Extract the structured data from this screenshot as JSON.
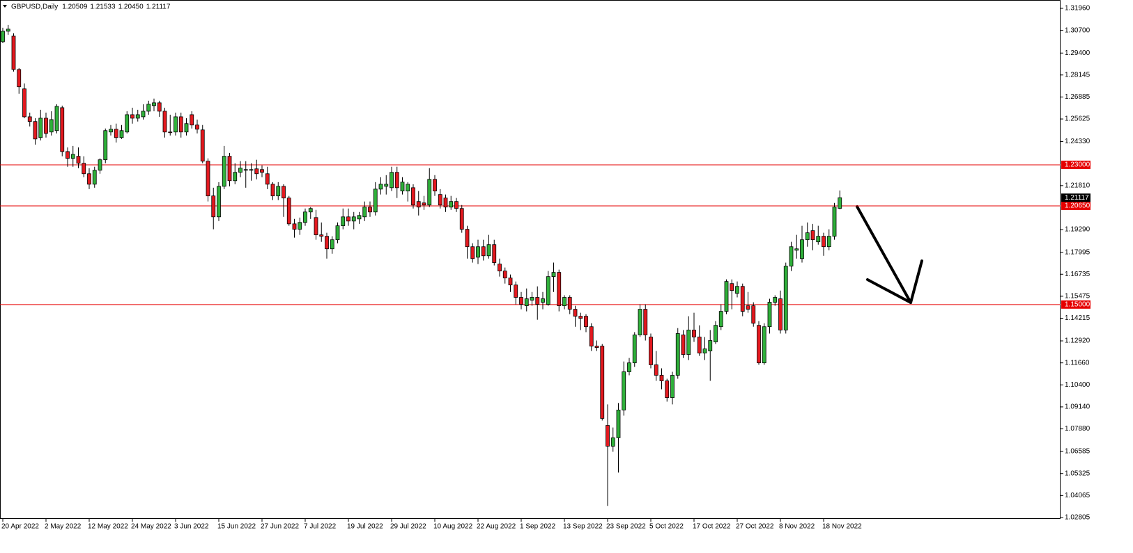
{
  "chart_data": {
    "type": "candlestick",
    "title": "GBPUSD,Daily",
    "header_values": [
      "1.20509",
      "1.21533",
      "1.20450",
      "1.21117"
    ],
    "categories": [
      "20 Apr 2022",
      null,
      null,
      null,
      null,
      null,
      null,
      null,
      "2 May 2022",
      null,
      null,
      null,
      null,
      null,
      null,
      null,
      "12 May 2022",
      null,
      null,
      null,
      null,
      null,
      null,
      null,
      "24 May 2022",
      null,
      null,
      null,
      null,
      null,
      null,
      null,
      "3 Jun 2022",
      null,
      null,
      null,
      null,
      null,
      null,
      null,
      "15 Jun 2022",
      null,
      null,
      null,
      null,
      null,
      null,
      null,
      "27 Jun 2022",
      null,
      null,
      null,
      null,
      null,
      null,
      null,
      "7 Jul 2022",
      null,
      null,
      null,
      null,
      null,
      null,
      null,
      "19 Jul 2022",
      null,
      null,
      null,
      null,
      null,
      null,
      null,
      "29 Jul 2022",
      null,
      null,
      null,
      null,
      null,
      null,
      null,
      "10 Aug 2022",
      null,
      null,
      null,
      null,
      null,
      null,
      null,
      "22 Aug 2022",
      null,
      null,
      null,
      null,
      null,
      null,
      null,
      "1 Sep 2022",
      null,
      null,
      null,
      null,
      null,
      null,
      null,
      "13 Sep 2022",
      null,
      null,
      null,
      null,
      null,
      null,
      null,
      "23 Sep 2022",
      null,
      null,
      null,
      null,
      null,
      null,
      null,
      "5 Oct 2022",
      null,
      null,
      null,
      null,
      null,
      null,
      null,
      "17 Oct 2022",
      null,
      null,
      null,
      null,
      null,
      null,
      null,
      "27 Oct 2022",
      null,
      null,
      null,
      null,
      null,
      null,
      null,
      "8 Nov 2022",
      null,
      null,
      null,
      null,
      null,
      null,
      null,
      "18 Nov 2022",
      null,
      null,
      null
    ],
    "open": [
      1.3005,
      1.3065,
      1.3037,
      1.2846,
      1.2735,
      1.2575,
      1.2548,
      1.2456,
      1.2567,
      1.2488,
      1.2496,
      1.2627,
      1.2376,
      1.2337,
      1.2349,
      1.2309,
      1.2249,
      1.2189,
      1.2269,
      1.2329,
      1.2488,
      1.2504,
      1.2456,
      1.2488,
      1.2587,
      1.2567,
      1.2575,
      1.2607,
      1.2639,
      1.2655,
      1.2607,
      1.2488,
      1.2488,
      1.2575,
      1.2488,
      1.2587,
      1.2528,
      1.25,
      1.2321,
      1.2122,
      1.2002,
      1.2177,
      1.2349,
      1.2209,
      1.2257,
      1.2269,
      1.2269,
      1.2277,
      1.2273,
      1.2249,
      1.2189,
      1.2122,
      1.2177,
      1.211,
      1.1962,
      1.1931,
      1.197,
      1.203,
      1.1998,
      1.1899,
      1.1891,
      1.1819,
      1.1871,
      1.1951,
      1.2002,
      1.1978,
      1.199,
      1.2002,
      1.2058,
      1.203,
      1.2161,
      1.2177,
      1.2169,
      1.2257,
      1.215,
      1.215,
      1.2169,
      1.209,
      1.2082,
      1.207,
      1.2217,
      1.213,
      1.211,
      1.2058,
      1.209,
      1.205,
      1.1931,
      1.1831,
      1.1771,
      1.1831,
      1.1779,
      1.1843,
      1.1732,
      1.1692,
      1.1652,
      1.1612,
      1.1541,
      1.1493,
      1.1525,
      1.1541,
      1.1513,
      1.1501,
      1.166,
      1.1684,
      1.1493,
      1.1541,
      1.1473,
      1.1433,
      1.1433,
      1.1373,
      1.1262,
      1.1262,
      1.0808,
      1.0689,
      1.0737,
      1.0896,
      1.1115,
      1.1166,
      1.1326,
      1.1473,
      1.1314,
      1.1155,
      1.1095,
      1.1063,
      1.0967,
      1.1095,
      1.1326,
      1.1214,
      1.1354,
      1.1314,
      1.1222,
      1.1234,
      1.1286,
      1.1373,
      1.1461,
      1.162,
      1.1564,
      1.1604,
      1.1493,
      1.1493,
      1.1381,
      1.1166,
      1.1373,
      1.1513,
      1.1533,
      1.1354,
      1.172,
      1.1811,
      1.1763,
      1.1871,
      1.1923,
      1.1859,
      1.1891,
      1.1831,
      1.1891,
      1.20509
    ],
    "high": [
      1.3085,
      1.3101,
      1.3053,
      1.2854,
      1.2766,
      1.2599,
      1.2567,
      1.2615,
      1.2599,
      1.2607,
      1.2647,
      1.2639,
      1.24,
      1.2408,
      1.24,
      1.2349,
      1.2281,
      1.2289,
      1.2337,
      1.2508,
      1.2528,
      1.2536,
      1.2528,
      1.2607,
      1.2627,
      1.2615,
      1.2647,
      1.2667,
      1.2679,
      1.2667,
      1.2627,
      1.2587,
      1.2599,
      1.2599,
      1.2567,
      1.2607,
      1.2559,
      1.2528,
      1.2337,
      1.2169,
      1.2201,
      1.2408,
      1.2368,
      1.2309,
      1.2321,
      1.2321,
      1.2309,
      1.2329,
      1.2297,
      1.2289,
      1.2201,
      1.2201,
      1.2189,
      1.2122,
      1.199,
      1.1998,
      1.205,
      1.2058,
      1.2042,
      1.197,
      1.1911,
      1.1891,
      1.197,
      1.205,
      1.205,
      1.203,
      1.203,
      1.209,
      1.209,
      1.2201,
      1.2229,
      1.2241,
      1.2289,
      1.2289,
      1.2229,
      1.2201,
      1.2189,
      1.215,
      1.2122,
      1.2281,
      1.2241,
      1.2161,
      1.213,
      1.2122,
      1.211,
      1.207,
      1.1951,
      1.1851,
      1.1871,
      1.1871,
      1.1899,
      1.1871,
      1.1763,
      1.1712,
      1.1672,
      1.1632,
      1.1572,
      1.1592,
      1.1572,
      1.1604,
      1.1572,
      1.1692,
      1.174,
      1.17,
      1.1553,
      1.1553,
      1.1493,
      1.1453,
      1.1445,
      1.1393,
      1.1294,
      1.1274,
      1.0928,
      1.0796,
      1.0936,
      1.1174,
      1.1194,
      1.1342,
      1.1501,
      1.1501,
      1.1334,
      1.1234,
      1.1135,
      1.1075,
      1.1115,
      1.1365,
      1.1354,
      1.1433,
      1.1453,
      1.1381,
      1.1314,
      1.1354,
      1.1405,
      1.1501,
      1.1644,
      1.1644,
      1.1632,
      1.162,
      1.1572,
      1.1513,
      1.1405,
      1.1393,
      1.1533,
      1.1553,
      1.158,
      1.174,
      1.1859,
      1.1899,
      1.1951,
      1.197,
      1.1962,
      1.1951,
      1.1911,
      1.1931,
      1.2082,
      1.21533
    ],
    "low": [
      1.2997,
      1.3045,
      1.2834,
      1.2707,
      1.2567,
      1.252,
      1.2416,
      1.244,
      1.2456,
      1.2468,
      1.248,
      1.2349,
      1.2289,
      1.2289,
      1.2281,
      1.2229,
      1.2161,
      1.2169,
      1.2249,
      1.2309,
      1.2468,
      1.2428,
      1.2448,
      1.248,
      1.2536,
      1.2548,
      1.2559,
      1.2587,
      1.2607,
      1.2575,
      1.2456,
      1.2468,
      1.2468,
      1.2456,
      1.2468,
      1.2508,
      1.248,
      1.2309,
      1.209,
      1.1931,
      1.1978,
      1.2161,
      1.2177,
      1.2189,
      1.2229,
      1.2169,
      1.2209,
      1.2217,
      1.2229,
      1.2161,
      1.2098,
      1.2098,
      1.2002,
      1.1951,
      1.1883,
      1.1899,
      1.1951,
      1.199,
      1.1871,
      1.1859,
      1.1763,
      1.1791,
      1.1851,
      1.1931,
      1.1951,
      1.1931,
      1.1962,
      1.1978,
      1.2002,
      1.201,
      1.213,
      1.213,
      1.215,
      1.211,
      1.213,
      1.209,
      1.205,
      1.201,
      1.2042,
      1.2058,
      1.2122,
      1.205,
      1.203,
      1.2042,
      1.203,
      1.1911,
      1.1763,
      1.174,
      1.1732,
      1.1752,
      1.1763,
      1.1724,
      1.166,
      1.162,
      1.1572,
      1.1501,
      1.1473,
      1.1461,
      1.1493,
      1.1413,
      1.1473,
      1.1493,
      1.1572,
      1.1461,
      1.1473,
      1.1445,
      1.1373,
      1.1354,
      1.1342,
      1.1234,
      1.1234,
      1.0836,
      1.0347,
      1.0657,
      1.0538,
      1.0864,
      1.1095,
      1.1143,
      1.1314,
      1.1294,
      1.1135,
      1.1063,
      1.1015,
      1.0944,
      1.0928,
      1.1075,
      1.1194,
      1.1182,
      1.1286,
      1.1206,
      1.1182,
      1.1063,
      1.1274,
      1.1354,
      1.1445,
      1.1473,
      1.1541,
      1.1433,
      1.1453,
      1.1373,
      1.1155,
      1.1155,
      1.1334,
      1.1493,
      1.1334,
      1.1334,
      1.1692,
      1.1763,
      1.174,
      1.1831,
      1.1811,
      1.1843,
      1.1779,
      1.1811,
      1.1871,
      1.2045
    ],
    "close": [
      1.3065,
      1.3077,
      1.2846,
      1.2747,
      1.2575,
      1.2548,
      1.2448,
      1.2567,
      1.248,
      1.2559,
      1.2635,
      1.2376,
      1.2337,
      1.236,
      1.2309,
      1.2249,
      1.2189,
      1.2269,
      1.2329,
      1.2496,
      1.2504,
      1.2456,
      1.2496,
      1.2587,
      1.2567,
      1.2587,
      1.2607,
      1.2647,
      1.2655,
      1.2607,
      1.2488,
      1.2484,
      1.2575,
      1.2488,
      1.2536,
      1.2528,
      1.2504,
      1.2321,
      1.2122,
      1.2002,
      1.2177,
      1.2349,
      1.2209,
      1.2257,
      1.2281,
      1.2273,
      1.2273,
      1.2249,
      1.2257,
      1.2189,
      1.2122,
      1.2177,
      1.211,
      1.1962,
      1.1931,
      1.197,
      1.203,
      1.205,
      1.1899,
      1.1891,
      1.1819,
      1.1871,
      1.1951,
      1.2002,
      1.1978,
      1.2002,
      1.201,
      1.2058,
      1.203,
      1.2161,
      1.2189,
      1.2189,
      1.2257,
      1.2169,
      1.2201,
      1.2189,
      1.207,
      1.2058,
      1.207,
      1.2217,
      1.215,
      1.207,
      1.2058,
      1.209,
      1.205,
      1.1931,
      1.1831,
      1.1763,
      1.1831,
      1.1779,
      1.1843,
      1.174,
      1.1692,
      1.1652,
      1.1612,
      1.1541,
      1.1501,
      1.1533,
      1.1541,
      1.1501,
      1.1533,
      1.166,
      1.1684,
      1.1493,
      1.1541,
      1.1473,
      1.1433,
      1.1421,
      1.1373,
      1.1262,
      1.1254,
      1.0848,
      1.0689,
      1.0737,
      1.0896,
      1.1115,
      1.1166,
      1.1326,
      1.1473,
      1.1326,
      1.1155,
      1.1095,
      1.1063,
      1.0967,
      1.1095,
      1.1334,
      1.1214,
      1.1354,
      1.1314,
      1.1222,
      1.1246,
      1.1294,
      1.1381,
      1.1461,
      1.1632,
      1.158,
      1.1604,
      1.1461,
      1.1473,
      1.1393,
      1.1166,
      1.1373,
      1.1513,
      1.1541,
      1.1354,
      1.172,
      1.1831,
      1.1819,
      1.1871,
      1.1911,
      1.1871,
      1.1891,
      1.1831,
      1.1891,
      1.2058,
      1.21117
    ],
    "ylim": [
      1.02725,
      1.32438
    ],
    "yticks": [
      {
        "value": 1.3196,
        "label": "1.31960"
      },
      {
        "value": 1.307,
        "label": "1.30700"
      },
      {
        "value": 1.294,
        "label": "1.29400"
      },
      {
        "value": 1.28145,
        "label": "1.28145"
      },
      {
        "value": 1.26885,
        "label": "1.26885"
      },
      {
        "value": 1.25625,
        "label": "1.25625"
      },
      {
        "value": 1.2433,
        "label": "1.24330"
      },
      {
        "value": 1.2181,
        "label": "1.21810"
      },
      {
        "value": 1.1929,
        "label": "1.19290"
      },
      {
        "value": 1.17995,
        "label": "1.17995"
      },
      {
        "value": 1.16735,
        "label": "1.16735"
      },
      {
        "value": 1.15475,
        "label": "1.15475"
      },
      {
        "value": 1.14215,
        "label": "1.14215"
      },
      {
        "value": 1.1292,
        "label": "1.12920"
      },
      {
        "value": 1.1166,
        "label": "1.11660"
      },
      {
        "value": 1.104,
        "label": "1.10400"
      },
      {
        "value": 1.0914,
        "label": "1.09140"
      },
      {
        "value": 1.0788,
        "label": "1.07880"
      },
      {
        "value": 1.06585,
        "label": "1.06585"
      },
      {
        "value": 1.05325,
        "label": "1.05325"
      },
      {
        "value": 1.04065,
        "label": "1.04065"
      },
      {
        "value": 1.02805,
        "label": "1.02805"
      }
    ],
    "levels": [
      {
        "value": 1.23,
        "label": "1.23000"
      },
      {
        "value": 1.2065,
        "label": "1.20650"
      },
      {
        "value": 1.15,
        "label": "1.15000"
      }
    ],
    "current_price": 1.21117,
    "bull_color": "#2fb03a",
    "bear_color": "#e3191f",
    "level_color": "#e60000"
  }
}
